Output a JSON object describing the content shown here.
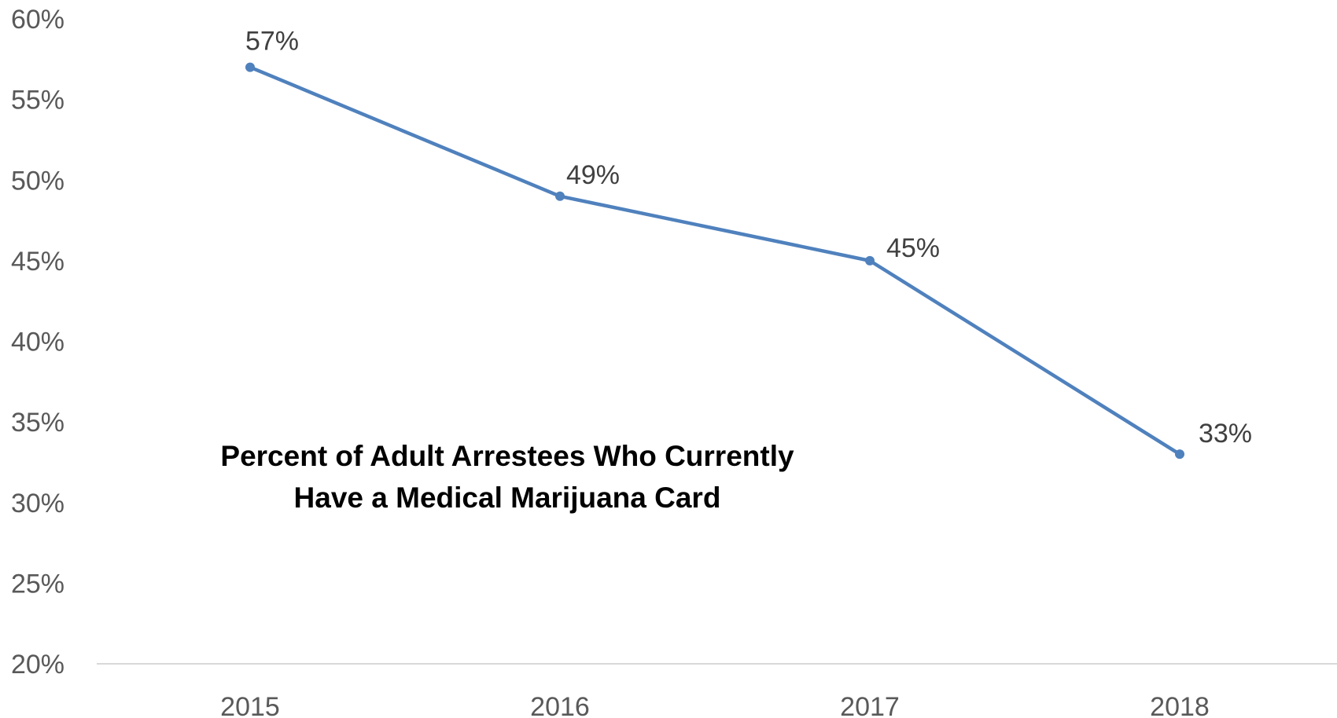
{
  "chart_data": {
    "type": "line",
    "title_lines": [
      "Percent of Adult Arrestees Who Currently",
      "Have a Medical Marijuana Card"
    ],
    "categories": [
      "2015",
      "2016",
      "2017",
      "2018"
    ],
    "series": [
      {
        "values": [
          57,
          49,
          45,
          33
        ],
        "labels": [
          "57%",
          "49%",
          "45%",
          "33%"
        ],
        "color": "#4F81BD"
      }
    ],
    "ylim": [
      20,
      60
    ],
    "yticks": [
      20,
      25,
      30,
      35,
      40,
      45,
      50,
      55,
      60
    ],
    "ytick_labels": [
      "20%",
      "25%",
      "30%",
      "35%",
      "40%",
      "45%",
      "50%",
      "55%",
      "60%"
    ],
    "grid": false,
    "axis_color": "#D9D9D9"
  }
}
